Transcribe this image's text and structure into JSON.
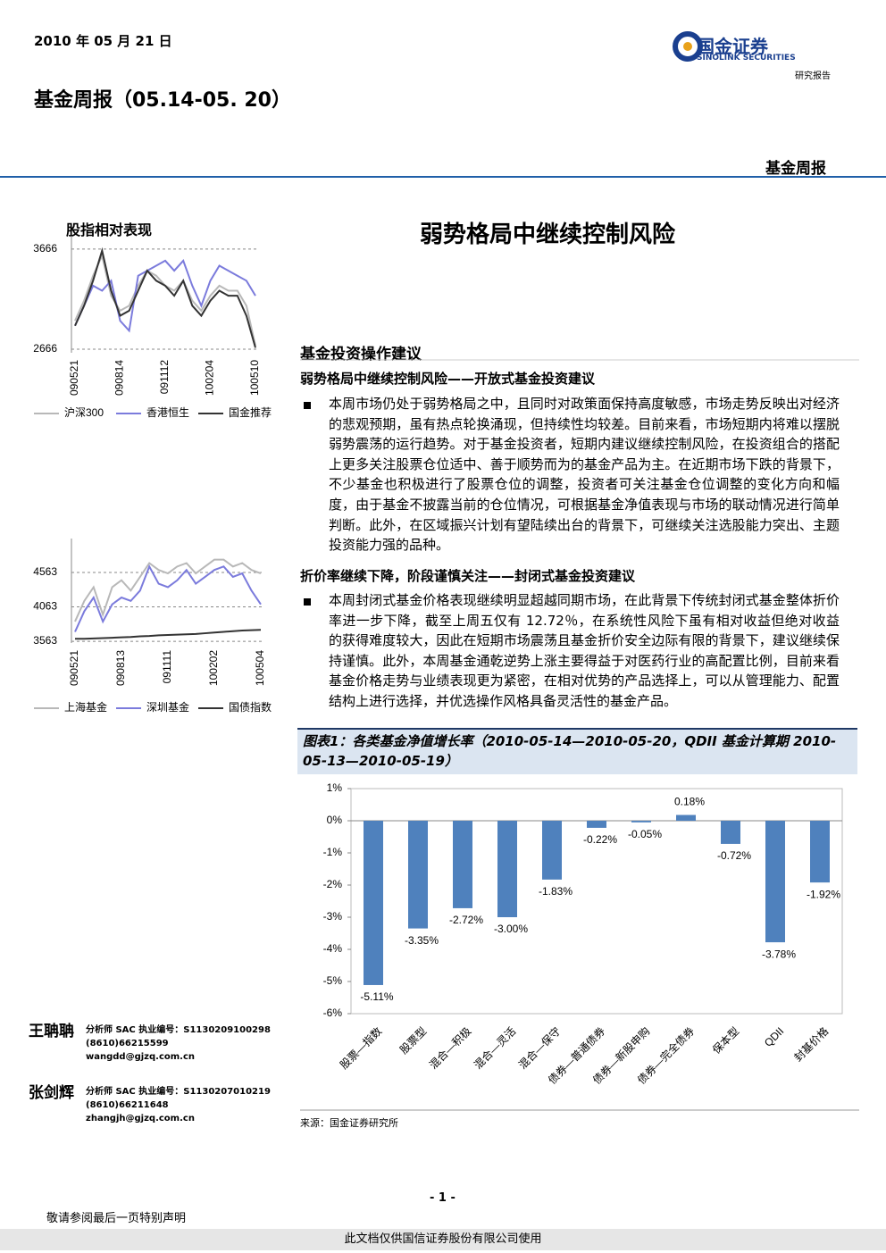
{
  "header": {
    "date": "2010 年 05 月 21 日",
    "title": "基金周报（05.14-05. 20）",
    "brand": "国金证券",
    "brand_en": "SINOLINK SECURITIES",
    "report_type": "研究报告",
    "section_label": "基金周报"
  },
  "main_title": "弱势格局中继续控制风险",
  "section": {
    "heading": "基金投资操作建议",
    "subsections": [
      {
        "title": "弱势格局中继续控制风险——开放式基金投资建议",
        "paragraph": "本周市场仍处于弱势格局之中，且同时对政策面保持高度敏感，市场走势反映出对经济的悲观预期，虽有热点轮换涌现，但持续性均较差。目前来看，市场短期内将难以摆脱弱势震荡的运行趋势。对于基金投资者，短期内建议继续控制风险，在投资组合的搭配上更多关注股票仓位适中、善于顺势而为的基金产品为主。在近期市场下跌的背景下，不少基金也积极进行了股票仓位的调整，投资者可关注基金仓位调整的变化方向和幅度，由于基金不披露当前的仓位情况，可根据基金净值表现与市场的联动情况进行简单判断。此外，在区域振兴计划有望陆续出台的背景下，可继续关注选股能力突出、主题投资能力强的品种。"
      },
      {
        "title": "折价率继续下降，阶段谨慎关注——封闭式基金投资建议",
        "paragraph": "本周封闭式基金价格表现继续明显超越同期市场，在此背景下传统封闭式基金整体折价率进一步下降，截至上周五仅有 12.72％，在系统性风险下虽有相对收益但绝对收益的获得难度较大，因此在短期市场震荡且基金折价安全边际有限的背景下，建议继续保持谨慎。此外，本周基金通乾逆势上涨主要得益于对医药行业的高配置比例，目前来看基金价格走势与业绩表现更为紧密，在相对优势的产品选择上，可以从管理能力、配置结构上进行选择，并优选操作风格具备灵活性的基金产品。"
      }
    ]
  },
  "figure": {
    "caption": "图表1：各类基金净值增长率（2010-05-14—2010-05-20，QDII 基金计算期 2010-05-13—2010-05-19）",
    "source": "来源：国金证券研究所"
  },
  "analysts": [
    {
      "name": "王聃聃",
      "role": "分析师 SAC 执业编号：S1130209100298",
      "phone": "(8610)66215599",
      "email": "wangdd@gjzq.com.cn"
    },
    {
      "name": "张剑辉",
      "role": "分析师 SAC 执业编号：S1130207010219",
      "phone": "(8610)66211648",
      "email": "zhangjh@gjzq.com.cn"
    }
  ],
  "footer": {
    "page": "- 1 -",
    "disclaimer": "敬请参阅最后一页特别声明",
    "watermark": "此文档仅供国信证券股份有限公司使用"
  },
  "chart_data": [
    {
      "type": "line",
      "title": "股指相对表现",
      "categories": [
        "090521",
        null,
        null,
        null,
        null,
        "090814",
        null,
        null,
        null,
        null,
        "091112",
        null,
        null,
        null,
        null,
        "100204",
        null,
        null,
        null,
        null,
        "100510"
      ],
      "ylim": [
        2630,
        3790
      ],
      "yticks": [
        2666,
        3666
      ],
      "grid": true,
      "series": [
        {
          "name": "沪深300",
          "color": "#b8b8b8",
          "values": [
            2950,
            3150,
            3400,
            3600,
            3200,
            3050,
            3100,
            3300,
            3450,
            3400,
            3300,
            3250,
            3350,
            3150,
            3050,
            3200,
            3300,
            3250,
            3250,
            3100,
            2700
          ]
        },
        {
          "name": "香港恒生",
          "color": "#7b7bdc",
          "values": [
            2900,
            3100,
            3300,
            3250,
            3350,
            2950,
            2850,
            3400,
            3450,
            3500,
            3550,
            3450,
            3550,
            3300,
            3100,
            3350,
            3500,
            3450,
            3400,
            3350,
            3200
          ]
        },
        {
          "name": "国金推荐",
          "color": "#333333",
          "values": [
            2900,
            3100,
            3350,
            3650,
            3250,
            3000,
            3050,
            3250,
            3450,
            3350,
            3300,
            3200,
            3350,
            3100,
            3000,
            3150,
            3250,
            3200,
            3200,
            3000,
            2680
          ]
        }
      ]
    },
    {
      "type": "line",
      "categories": [
        "090521",
        null,
        null,
        null,
        null,
        "090813",
        null,
        null,
        null,
        null,
        "091111",
        null,
        null,
        null,
        null,
        "100202",
        null,
        null,
        null,
        null,
        "100504"
      ],
      "ylim": [
        3538,
        5057
      ],
      "yticks": [
        3563,
        4063,
        4563
      ],
      "grid": true,
      "series": [
        {
          "name": "上海基金",
          "color": "#b8b8b8",
          "values": [
            3850,
            4150,
            4350,
            3950,
            4350,
            4450,
            4300,
            4500,
            4700,
            4600,
            4550,
            4650,
            4700,
            4550,
            4650,
            4750,
            4750,
            4650,
            4700,
            4600,
            4550
          ]
        },
        {
          "name": "深圳基金",
          "color": "#7b7bdc",
          "values": [
            3700,
            4000,
            4200,
            3850,
            4100,
            4200,
            4150,
            4300,
            4650,
            4400,
            4350,
            4450,
            4600,
            4400,
            4500,
            4600,
            4650,
            4500,
            4550,
            4300,
            4100
          ]
        },
        {
          "name": "国债指数",
          "color": "#333333",
          "values": [
            3600,
            3600,
            3605,
            3610,
            3615,
            3620,
            3625,
            3635,
            3640,
            3650,
            3655,
            3660,
            3665,
            3670,
            3680,
            3690,
            3700,
            3710,
            3720,
            3725,
            3730
          ]
        }
      ]
    },
    {
      "type": "bar",
      "categories": [
        "股票—指数",
        "股票型",
        "混合—积极",
        "混合—灵活",
        "混合—保守",
        "债券—普通债券",
        "债券—新股申购",
        "债券—完全债券",
        "保本型",
        "QDII",
        "封基价格"
      ],
      "values": [
        -5.11,
        -3.35,
        -2.72,
        -3.0,
        -1.83,
        -0.22,
        -0.05,
        0.18,
        -0.72,
        -3.78,
        -1.92
      ],
      "value_labels": [
        "-5.11%",
        "-3.35%",
        "-2.72%",
        "-3.00%",
        "-1.83%",
        "-0.22%",
        "-0.05%",
        "0.18%",
        "-0.72%",
        "-3.78%",
        "-1.92%"
      ],
      "color": "#4f81bd",
      "ylim": [
        -6,
        1
      ],
      "yticks": [
        {
          "value": 1,
          "label": "1%"
        },
        {
          "value": 0,
          "label": "0%"
        },
        {
          "value": -1,
          "label": "-1%"
        },
        {
          "value": -2,
          "label": "-2%"
        },
        {
          "value": -3,
          "label": "-3%"
        },
        {
          "value": -4,
          "label": "-4%"
        },
        {
          "value": -5,
          "label": "-5%"
        },
        {
          "value": -6,
          "label": "-6%"
        }
      ]
    }
  ]
}
